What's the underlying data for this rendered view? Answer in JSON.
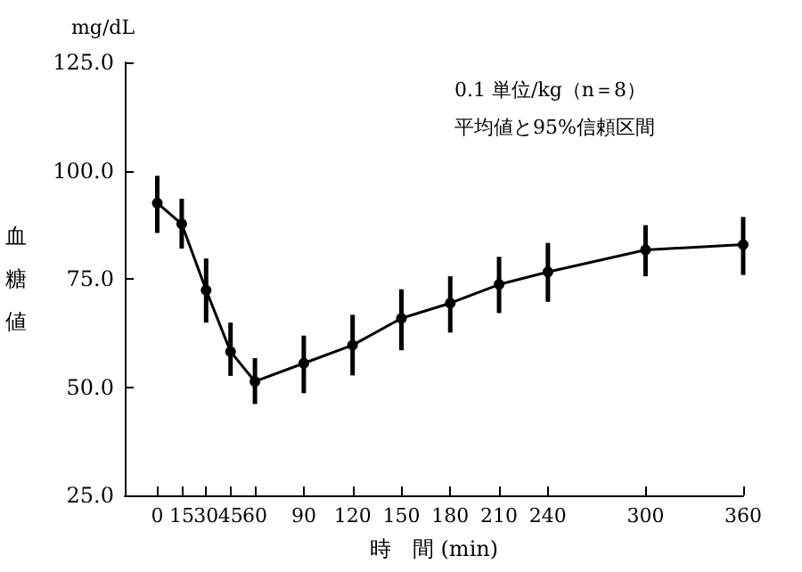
{
  "chart_data": {
    "type": "line",
    "xlabel": "時　間 (min)",
    "ylabel": "血糖値",
    "annotations": [
      "mg/dL",
      "0.1 単位/kg（n＝8）",
      "平均値と95%信頼区間"
    ],
    "x": [
      0,
      15,
      30,
      45,
      60,
      90,
      120,
      150,
      180,
      210,
      240,
      300,
      360
    ],
    "series": [
      {
        "color": "#000000",
        "values": [
          92.5,
          87.7,
          72.4,
          58.2,
          51.3,
          55.5,
          59.7,
          65.9,
          69.4,
          73.7,
          76.6,
          81.7,
          82.9
        ],
        "errors": [
          [
            85.6,
            98.8
          ],
          [
            82.0,
            93.5
          ],
          [
            64.9,
            79.7
          ],
          [
            52.6,
            64.9
          ],
          [
            46.1,
            56.7
          ],
          [
            48.6,
            61.9
          ],
          [
            52.7,
            66.7
          ],
          [
            58.5,
            72.6
          ],
          [
            62.6,
            75.6
          ],
          [
            67.1,
            80.1
          ],
          [
            69.7,
            83.3
          ],
          [
            75.6,
            87.4
          ],
          [
            75.9,
            89.3
          ]
        ]
      }
    ],
    "xlim": [
      -20,
      360
    ],
    "xticks": [
      0,
      15,
      30,
      45,
      60,
      90,
      120,
      150,
      180,
      210,
      240,
      300,
      360
    ],
    "ylim": [
      25,
      125
    ],
    "yticks": [
      {
        "value": 25,
        "label": "25.0"
      },
      {
        "value": 50,
        "label": "50.0"
      },
      {
        "value": 75,
        "label": "75.0"
      },
      {
        "value": 100,
        "label": "100.0"
      },
      {
        "value": 125,
        "label": "125.0"
      }
    ],
    "grid": false,
    "marker": "circle",
    "line_style": "solid"
  }
}
